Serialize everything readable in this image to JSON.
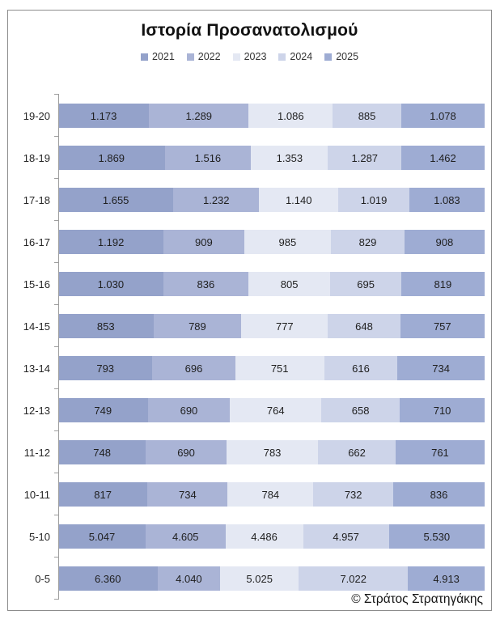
{
  "chart_data": {
    "type": "bar",
    "variant": "100%-stacked-horizontal",
    "title": "Ιστορία Προσανατολισμού",
    "footer": "© Στράτος Στρατηγάκης",
    "legend_position": "top",
    "grid": false,
    "axis_color": "#9d9d9d",
    "categories": [
      "19-20",
      "18-19",
      "17-18",
      "16-17",
      "15-16",
      "14-15",
      "13-14",
      "12-13",
      "11-12",
      "10-11",
      "5-10",
      "0-5"
    ],
    "series": [
      {
        "name": "2021",
        "color": "#94a2ca",
        "values": [
          1173,
          1869,
          1655,
          1192,
          1030,
          853,
          793,
          749,
          748,
          817,
          5047,
          6360
        ],
        "labels": [
          "1.173",
          "1.869",
          "1.655",
          "1.192",
          "1.030",
          "853",
          "793",
          "749",
          "748",
          "817",
          "5.047",
          "6.360"
        ]
      },
      {
        "name": "2022",
        "color": "#aab4d6",
        "values": [
          1289,
          1516,
          1232,
          909,
          836,
          789,
          696,
          690,
          690,
          734,
          4605,
          4040
        ],
        "labels": [
          "1.289",
          "1.516",
          "1.232",
          "909",
          "836",
          "789",
          "696",
          "690",
          "690",
          "734",
          "4.605",
          "4.040"
        ]
      },
      {
        "name": "2023",
        "color": "#e4e8f3",
        "values": [
          1086,
          1353,
          1140,
          985,
          805,
          777,
          751,
          764,
          783,
          784,
          4486,
          5025
        ],
        "labels": [
          "1.086",
          "1.353",
          "1.140",
          "985",
          "805",
          "777",
          "751",
          "764",
          "783",
          "784",
          "4.486",
          "5.025"
        ]
      },
      {
        "name": "2024",
        "color": "#cdd4e9",
        "values": [
          885,
          1287,
          1019,
          829,
          695,
          648,
          616,
          658,
          662,
          732,
          4957,
          7022
        ],
        "labels": [
          "885",
          "1.287",
          "1.019",
          "829",
          "695",
          "648",
          "616",
          "658",
          "662",
          "732",
          "4.957",
          "7.022"
        ]
      },
      {
        "name": "2025",
        "color": "#9eacd3",
        "values": [
          1078,
          1462,
          1083,
          908,
          819,
          757,
          734,
          710,
          761,
          836,
          5530,
          4913
        ],
        "labels": [
          "1.078",
          "1.462",
          "1.083",
          "908",
          "819",
          "757",
          "734",
          "710",
          "761",
          "836",
          "5.530",
          "4.913"
        ]
      }
    ]
  }
}
